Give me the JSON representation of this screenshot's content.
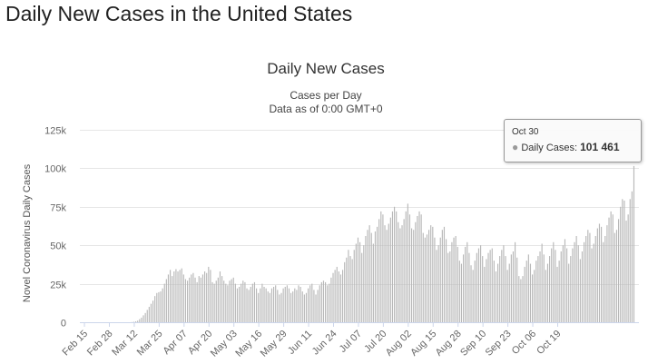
{
  "page": {
    "title": "Daily New Cases in the United States"
  },
  "tooltip": {
    "date": "Oct 30",
    "series_label": "Daily Cases",
    "value_text": "101 461"
  },
  "colors": {
    "bar": "#b8b8b8",
    "grid": "#e6e6e6",
    "axis": "#333333"
  },
  "chart_data": {
    "type": "bar",
    "title": "Daily New Cases",
    "subtitle_lines": [
      "Cases per Day",
      "Data as of 0:00 GMT+0"
    ],
    "ylabel": "Novel Coronavirus Daily Cases",
    "xlabel": "",
    "ylim": [
      0,
      125000
    ],
    "y_ticks": [
      0,
      25000,
      50000,
      75000,
      100000,
      125000
    ],
    "y_tick_labels": [
      "0",
      "25k",
      "50k",
      "75k",
      "100k",
      "125k"
    ],
    "x_start": "Feb 15",
    "x_tick_labels": [
      "Feb 15",
      "Feb 28",
      "Mar 12",
      "Mar 25",
      "Apr 07",
      "Apr 20",
      "May 03",
      "May 16",
      "May 29",
      "Jun 11",
      "Jun 24",
      "Jul 07",
      "Jul 20",
      "Aug 02",
      "Aug 15",
      "Aug 28",
      "Sep 10",
      "Sep 23",
      "Oct 06",
      "Oct 19"
    ],
    "series": [
      {
        "name": "Daily Cases",
        "values": [
          0,
          0,
          0,
          0,
          0,
          0,
          0,
          0,
          0,
          0,
          0,
          0,
          0,
          0,
          0,
          0,
          0,
          0,
          0,
          0,
          0,
          0,
          0,
          0,
          0,
          100,
          300,
          600,
          1000,
          2000,
          3000,
          4500,
          6000,
          8000,
          10000,
          12000,
          14000,
          17000,
          19000,
          19500,
          20000,
          22000,
          25000,
          28000,
          31000,
          34000,
          30000,
          33000,
          34500,
          33000,
          34000,
          35000,
          31000,
          28000,
          27000,
          29000,
          31000,
          32000,
          29000,
          26000,
          30000,
          29000,
          31000,
          33000,
          32000,
          36000,
          34000,
          26000,
          25000,
          27000,
          29000,
          33000,
          30000,
          27000,
          25000,
          24000,
          27000,
          28000,
          29000,
          25000,
          22000,
          23000,
          25000,
          27000,
          26000,
          22000,
          21000,
          23000,
          25000,
          26000,
          22000,
          19000,
          22000,
          25000,
          23000,
          22000,
          20000,
          19000,
          22000,
          23000,
          24000,
          21000,
          18000,
          19000,
          22000,
          23000,
          24000,
          22000,
          19000,
          20000,
          22000,
          21000,
          24000,
          23000,
          20000,
          18000,
          19000,
          22000,
          24000,
          25000,
          21000,
          18000,
          21000,
          24000,
          26000,
          27000,
          26000,
          24000,
          25000,
          29000,
          32000,
          34000,
          36000,
          33000,
          31000,
          34000,
          39000,
          42000,
          47000,
          43000,
          41000,
          47000,
          51000,
          55000,
          52000,
          45000,
          50000,
          56000,
          60000,
          63000,
          58000,
          51000,
          59000,
          62000,
          67000,
          72000,
          70000,
          63000,
          60000,
          64000,
          68000,
          72000,
          75000,
          72000,
          65000,
          61000,
          63000,
          67000,
          72000,
          77000,
          70000,
          61000,
          60000,
          65000,
          69000,
          72000,
          70000,
          58000,
          55000,
          57000,
          60000,
          63000,
          62000,
          55000,
          47000,
          50000,
          55000,
          60000,
          62000,
          54000,
          45000,
          46000,
          52000,
          55000,
          56000,
          49000,
          40000,
          38000,
          44000,
          49000,
          52000,
          45000,
          37000,
          34000,
          40000,
          45000,
          48000,
          50000,
          43000,
          36000,
          41000,
          45000,
          47000,
          48000,
          40000,
          33000,
          38000,
          43000,
          47000,
          50000,
          43000,
          34000,
          38000,
          44000,
          46000,
          52000,
          42000,
          30000,
          28000,
          30000,
          36000,
          40000,
          44000,
          38000,
          31000,
          34000,
          40000,
          43000,
          46000,
          51000,
          44000,
          34000,
          38000,
          43000,
          48000,
          52000,
          47000,
          36000,
          40000,
          46000,
          50000,
          54000,
          48000,
          38000,
          43000,
          48000,
          52000,
          56000,
          50000,
          41000,
          46000,
          52000,
          56000,
          60000,
          58000,
          48000,
          51000,
          56000,
          61000,
          64000,
          62000,
          52000,
          56000,
          63000,
          68000,
          72000,
          70000,
          58000,
          60000,
          67000,
          75000,
          80000,
          79000,
          66000,
          70000,
          80000,
          85000,
          101461
        ]
      }
    ]
  }
}
